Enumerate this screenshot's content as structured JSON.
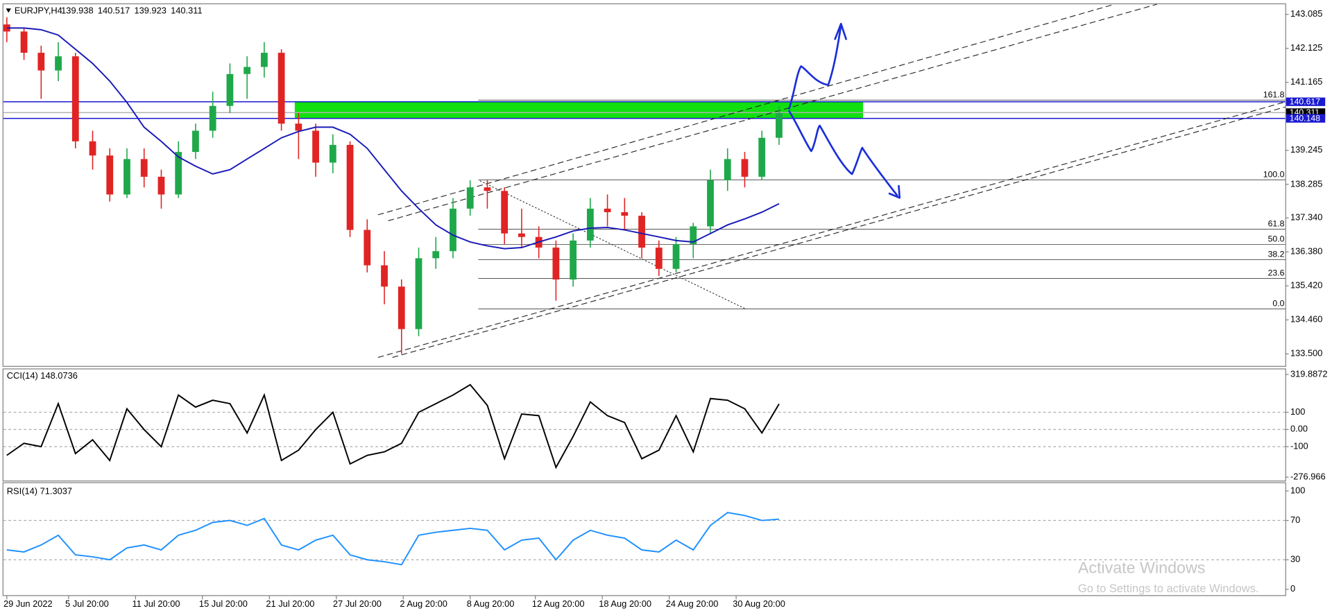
{
  "chart_data": [
    {
      "type": "candlestick",
      "symbol": "EURJPY,H4",
      "quote": [
        139.938,
        140.517,
        139.923,
        140.311
      ],
      "xlim": [
        -0.2,
        74.5
      ],
      "ylim": [
        133.16,
        143.37
      ],
      "yticks": [
        143.085,
        142.125,
        141.165,
        139.245,
        138.285,
        {
          "value": 137.34,
          "label": "137.340"
        },
        {
          "value": 136.38,
          "label": "136.380"
        },
        {
          "value": 135.42,
          "label": "135.420"
        },
        {
          "value": 134.46,
          "label": "134.460"
        },
        {
          "value": 133.5,
          "label": "133.500"
        }
      ],
      "xticks": [
        {
          "value": 0,
          "label": "29 Jun 2022"
        },
        {
          "value": 3.6,
          "label": "5 Jul 20:00"
        },
        {
          "value": 7.5,
          "label": "11 Jul 20:00"
        },
        {
          "value": 11.4,
          "label": "15 Jul 20:00"
        },
        {
          "value": 15.3,
          "label": "21 Jul 20:00"
        },
        {
          "value": 19.2,
          "label": "27 Jul 20:00"
        },
        {
          "value": 23.1,
          "label": "2 Aug 20:00"
        },
        {
          "value": 27,
          "label": "8 Aug 20:00"
        },
        {
          "value": 30.8,
          "label": "12 Aug 20:00"
        },
        {
          "value": 34.7,
          "label": "18 Aug 20:00"
        },
        {
          "value": 38.6,
          "label": "24 Aug 20:00"
        },
        {
          "value": 42.5,
          "label": "30 Aug 20:00"
        }
      ],
      "open": [
        142.8,
        142.6,
        142.0,
        141.5,
        141.9,
        139.5,
        139.1,
        138.0,
        139.0,
        138.5,
        138.0,
        139.2,
        139.8,
        140.5,
        141.4,
        141.6,
        142.0,
        140.0,
        139.8,
        138.9,
        139.4,
        137.0,
        136.0,
        135.4,
        134.2,
        136.2,
        136.4,
        137.6,
        138.2,
        138.1,
        136.9,
        136.8,
        136.5,
        135.6,
        136.7,
        137.6,
        137.5,
        137.4,
        136.5,
        135.9,
        136.6,
        137.1,
        138.4,
        139.0,
        138.5,
        139.6
      ],
      "high": [
        143.0,
        142.7,
        142.2,
        142.3,
        142.0,
        139.8,
        139.3,
        139.3,
        139.3,
        138.7,
        139.5,
        140.0,
        140.9,
        141.7,
        141.9,
        142.3,
        142.1,
        140.3,
        140.0,
        139.7,
        139.5,
        137.3,
        136.4,
        135.6,
        136.5,
        136.8,
        137.9,
        138.4,
        138.4,
        138.2,
        137.6,
        137.1,
        136.7,
        136.9,
        137.9,
        138.0,
        137.9,
        137.5,
        136.7,
        136.8,
        137.2,
        138.7,
        139.3,
        139.2,
        139.8,
        140.5
      ],
      "low": [
        142.3,
        141.8,
        140.7,
        141.2,
        139.3,
        138.7,
        137.8,
        137.9,
        138.2,
        137.6,
        137.9,
        139.0,
        139.6,
        140.3,
        140.7,
        141.3,
        139.8,
        139.0,
        138.5,
        138.6,
        136.8,
        135.8,
        134.9,
        133.5,
        134.0,
        135.9,
        136.2,
        137.4,
        137.6,
        136.6,
        136.5,
        136.2,
        135.0,
        135.4,
        136.5,
        137.1,
        137.0,
        136.2,
        135.7,
        135.8,
        136.2,
        136.9,
        138.1,
        138.2,
        138.4,
        139.4
      ],
      "close": [
        142.6,
        142.0,
        141.5,
        141.9,
        139.5,
        139.1,
        138.0,
        139.0,
        138.5,
        138.0,
        139.2,
        139.8,
        140.5,
        141.4,
        141.6,
        142.0,
        140.0,
        139.8,
        138.9,
        139.4,
        137.0,
        136.0,
        135.4,
        134.2,
        136.2,
        136.4,
        137.6,
        138.2,
        138.1,
        136.9,
        136.8,
        136.5,
        135.6,
        136.7,
        137.6,
        137.5,
        137.4,
        136.5,
        135.9,
        136.6,
        137.1,
        138.4,
        139.0,
        138.5,
        139.6,
        140.3
      ],
      "up_color": "#1fa84a",
      "down_color": "#e02424",
      "ma_color": "#1a1ab8",
      "ma_values": [
        142.7,
        142.7,
        142.65,
        142.5,
        142.1,
        141.7,
        141.2,
        140.6,
        139.9,
        139.5,
        139.06,
        138.8,
        138.58,
        138.7,
        139.0,
        139.3,
        139.6,
        139.78,
        139.9,
        139.9,
        139.7,
        139.3,
        138.7,
        138.1,
        137.6,
        137.14,
        136.85,
        136.66,
        136.55,
        136.47,
        136.5,
        136.66,
        136.8,
        136.97,
        137.05,
        137.07,
        137.0,
        136.9,
        136.8,
        136.7,
        136.66,
        136.9,
        137.14,
        137.31,
        137.5,
        137.74
      ],
      "price_lines": [
        {
          "value": 140.617,
          "color": "#1a1ad0"
        },
        {
          "value": 140.311,
          "color": "#000000"
        },
        {
          "value": 140.148,
          "color": "#1a1ad0"
        }
      ],
      "zone_color": "#10e010",
      "fibonacci": {
        "levels": [
          161.8,
          {
            "value": 100,
            "label": "100.0"
          },
          61.8,
          {
            "value": 50,
            "label": "50.0"
          },
          38.2,
          23.6,
          {
            "value": 0,
            "label": "0.0"
          }
        ],
        "prices": [
          140.663,
          138.412,
          137.02,
          136.591,
          136.161,
          135.63,
          134.77
        ]
      }
    },
    {
      "type": "line",
      "title": "CCI(14) 148.0736",
      "color": "#000000",
      "ylim": [
        -296.7,
        349.5
      ],
      "yticks": [
        319.8872,
        100,
        {
          "value": 0,
          "label": "0.00"
        },
        -100,
        -276.966
      ],
      "levels": [
        100,
        0,
        -100
      ],
      "values": [
        -150,
        -80,
        -100,
        150,
        -140,
        -60,
        -180,
        120,
        0,
        -100,
        200,
        130,
        170,
        150,
        -20,
        200,
        -180,
        -120,
        0,
        100,
        -200,
        -150,
        -130,
        -80,
        100,
        150,
        200,
        260,
        140,
        -170,
        90,
        80,
        -220,
        -40,
        160,
        80,
        40,
        -170,
        -120,
        80,
        -130,
        180,
        170,
        120,
        -20,
        148
      ]
    },
    {
      "type": "line",
      "title": "RSI(14) 71.3037",
      "color": "#1e90ff",
      "ylim": [
        -6,
        108
      ],
      "yticks": [
        100,
        70,
        30,
        0
      ],
      "levels": [
        70,
        30
      ],
      "values": [
        40,
        38,
        45,
        55,
        35,
        33,
        30,
        42,
        45,
        40,
        55,
        60,
        68,
        70,
        65,
        72,
        45,
        40,
        50,
        55,
        35,
        30,
        28,
        25,
        55,
        58,
        60,
        62,
        60,
        40,
        50,
        52,
        30,
        50,
        60,
        55,
        52,
        40,
        38,
        50,
        40,
        65,
        78,
        75,
        70,
        71.3
      ]
    }
  ],
  "watermark": {
    "title": "Activate Windows",
    "text": "Go to Settings to activate Windows."
  }
}
